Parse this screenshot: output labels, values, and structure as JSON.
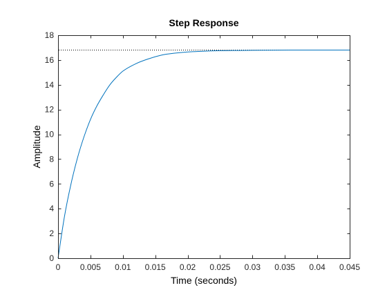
{
  "chart_data": {
    "type": "line",
    "title": "Step Response",
    "xlabel": "Time (seconds)",
    "ylabel": "Amplitude",
    "xlim": [
      0,
      0.045
    ],
    "ylim": [
      0,
      18
    ],
    "x_ticks": [
      0,
      0.005,
      0.01,
      0.015,
      0.02,
      0.025,
      0.03,
      0.035,
      0.04,
      0.045
    ],
    "x_tick_labels": [
      "0",
      "0.005",
      "0.01",
      "0.015",
      "0.02",
      "0.025",
      "0.03",
      "0.035",
      "0.04",
      "0.045"
    ],
    "y_ticks": [
      0,
      2,
      4,
      6,
      8,
      10,
      12,
      14,
      16,
      18
    ],
    "y_tick_labels": [
      "0",
      "2",
      "4",
      "6",
      "8",
      "10",
      "12",
      "14",
      "16",
      "18"
    ],
    "grid": false,
    "series": [
      {
        "x": [
          0,
          0.001,
          0.002,
          0.003,
          0.004,
          0.005,
          0.006,
          0.007,
          0.008,
          0.009,
          0.01,
          0.012,
          0.014,
          0.016,
          0.018,
          0.02,
          0.022,
          0.025,
          0.028,
          0.032,
          0.036,
          0.04,
          0.045
        ],
        "y": [
          0,
          3.4,
          6.0,
          8.1,
          9.8,
          11.2,
          12.3,
          13.2,
          14.0,
          14.6,
          15.1,
          15.7,
          16.1,
          16.4,
          16.55,
          16.65,
          16.7,
          16.75,
          16.77,
          16.79,
          16.8,
          16.8,
          16.8
        ],
        "color": "#0072BD"
      }
    ],
    "reference_lines": [
      {
        "y": 16.8,
        "style": "dotted",
        "color": "#000000"
      }
    ]
  }
}
